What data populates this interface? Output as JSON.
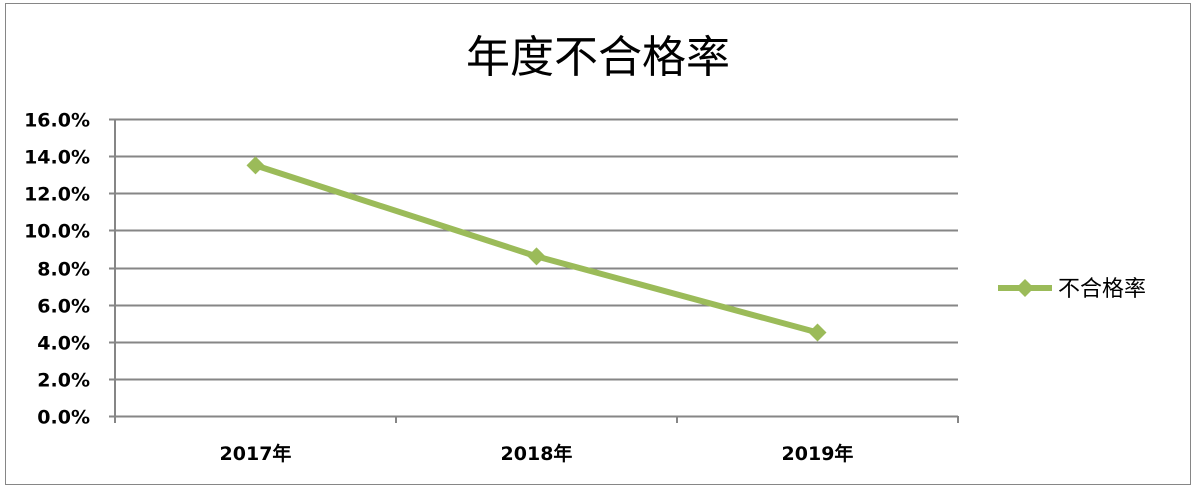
{
  "chart_data": {
    "type": "line",
    "title": "年度不合格率",
    "categories": [
      "2017年",
      "2018年",
      "2019年"
    ],
    "series": [
      {
        "name": "不合格率",
        "values": [
          13.5,
          8.6,
          4.5
        ],
        "color": "#9BBB59",
        "marker": "diamond"
      }
    ],
    "y_ticks": [
      "0.0%",
      "2.0%",
      "4.0%",
      "6.0%",
      "8.0%",
      "10.0%",
      "12.0%",
      "14.0%",
      "16.0%"
    ],
    "ylim": [
      0,
      16
    ],
    "y_unit": "%",
    "grid": true,
    "legend_position": "right",
    "colors": {
      "gridline": "#868686",
      "border": "#868686",
      "text": "#000000"
    }
  }
}
